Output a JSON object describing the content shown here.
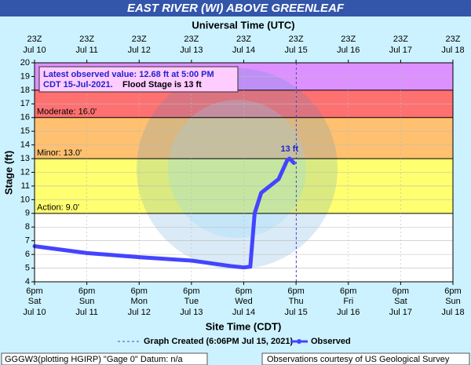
{
  "chart_data": {
    "type": "line",
    "title": "EAST RIVER (WI) ABOVE GREENLEAF",
    "top_axis_label": "Universal Time (UTC)",
    "x_label": "Site Time (CDT)",
    "y_label": "Stage (ft)",
    "ylim": [
      4,
      20
    ],
    "yticks": [
      4,
      5,
      6,
      7,
      8,
      9,
      10,
      11,
      12,
      13,
      14,
      15,
      16,
      17,
      18,
      19,
      20
    ],
    "xlim": [
      "2021-07-10 18:00",
      "2021-07-18 18:00"
    ],
    "xticks": [
      "2021-07-10 18:00",
      "2021-07-11 18:00",
      "2021-07-12 18:00",
      "2021-07-13 18:00",
      "2021-07-14 18:00",
      "2021-07-15 18:00",
      "2021-07-16 18:00",
      "2021-07-17 18:00",
      "2021-07-18 18:00"
    ],
    "xtick_times": [
      "6pm",
      "6pm",
      "6pm",
      "6pm",
      "6pm",
      "6pm",
      "6pm",
      "6pm",
      "6pm"
    ],
    "xtick_days": [
      "Sat",
      "Sun",
      "Mon",
      "Tue",
      "Wed",
      "Thu",
      "Fri",
      "Sat",
      "Sun"
    ],
    "xtick_dates": [
      "Jul 10",
      "Jul 11",
      "Jul 12",
      "Jul 13",
      "Jul 14",
      "Jul 15",
      "Jul 16",
      "Jul 17",
      "Jul 18"
    ],
    "top_tick_times": [
      "23Z",
      "23Z",
      "23Z",
      "23Z",
      "23Z",
      "23Z",
      "23Z",
      "23Z",
      "23Z"
    ],
    "bands": [
      {
        "from": 9,
        "to": 13,
        "color": "#ffff70"
      },
      {
        "from": 13,
        "to": 16,
        "color": "#ffc070"
      },
      {
        "from": 16,
        "to": 18,
        "color": "#ff7070"
      },
      {
        "from": 18,
        "to": 20,
        "color": "#dd90ff"
      }
    ],
    "stage_labels": [
      {
        "value": 9,
        "label": "Action: 9.0'"
      },
      {
        "value": 13,
        "label": "Minor: 13.0'"
      },
      {
        "value": 16,
        "label": "Moderate: 16.0'"
      }
    ],
    "grid": true,
    "x": [
      "2021-07-10 18:00",
      "2021-07-11 18:00",
      "2021-07-12 18:00",
      "2021-07-13 18:00",
      "2021-07-14 12:00",
      "2021-07-14 18:00",
      "2021-07-14 21:00",
      "2021-07-14 23:00",
      "2021-07-15 02:00",
      "2021-07-15 06:00",
      "2021-07-15 10:00",
      "2021-07-15 14:00",
      "2021-07-15 15:00",
      "2021-07-15 17:00"
    ],
    "series": [
      {
        "name": "Observed",
        "color": "#4444ff",
        "values": [
          6.6,
          6.1,
          5.8,
          5.55,
          5.15,
          5.05,
          5.1,
          9.0,
          10.5,
          11.0,
          11.5,
          12.9,
          13.0,
          12.68
        ]
      }
    ],
    "peak_annotation": {
      "x": "2021-07-15 15:00",
      "value": 13,
      "label": "13 ft"
    },
    "annotation_lines": [
      "Latest observed value: 12.68 ft at 5:00 PM",
      "CDT 15-Jul-2021.",
      "Flood Stage is 13 ft"
    ],
    "graph_created": {
      "x": "2021-07-15 18:06",
      "label": "Graph Created (6:06PM Jul 15, 2021)"
    },
    "footer_left": "GGGW3(plotting HGIRP) \"Gage 0\" Datum: n/a",
    "footer_right": "Observations courtesy of US Geological Survey"
  }
}
